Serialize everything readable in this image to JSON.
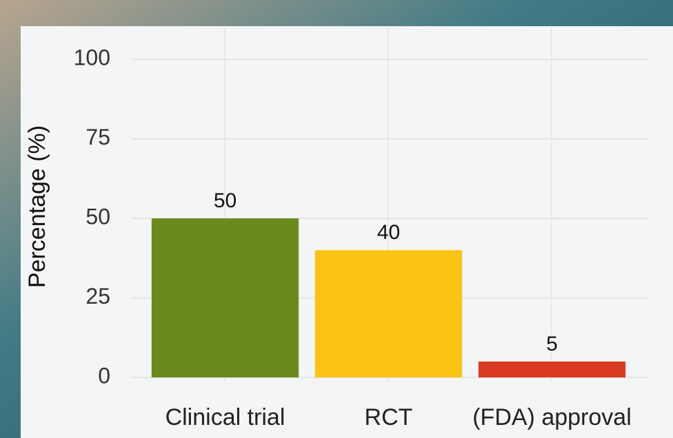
{
  "chart_data": {
    "type": "bar",
    "y_label": "Percentage (%)",
    "categories": [
      "Clinical trial",
      "RCT",
      "(FDA) approval"
    ],
    "values": [
      50,
      40,
      5
    ],
    "colors": [
      "#6b8a1c",
      "#fbc314",
      "#d93a20"
    ],
    "ylim": [
      -1.5,
      110
    ],
    "yticks": [
      0,
      25,
      50,
      75,
      100
    ],
    "grid": true
  }
}
